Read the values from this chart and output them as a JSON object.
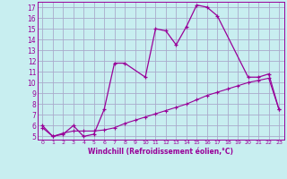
{
  "xlabel": "Windchill (Refroidissement éolien,°C)",
  "bg_color": "#c8eef0",
  "grid_color": "#aaaacc",
  "line_color": "#990099",
  "xlim": [
    -0.5,
    23.5
  ],
  "ylim": [
    4.7,
    17.5
  ],
  "yticks": [
    5,
    6,
    7,
    8,
    9,
    10,
    11,
    12,
    13,
    14,
    15,
    16,
    17
  ],
  "xticks": [
    0,
    1,
    2,
    3,
    4,
    5,
    6,
    7,
    8,
    9,
    10,
    11,
    12,
    13,
    14,
    15,
    16,
    17,
    18,
    19,
    20,
    21,
    22,
    23
  ],
  "line1_x": [
    0,
    1,
    2,
    3,
    4,
    5,
    6,
    7,
    8,
    10,
    11,
    12,
    13,
    14,
    15,
    16,
    17,
    20,
    21,
    22,
    23
  ],
  "line1_y": [
    6.0,
    5.0,
    5.2,
    6.0,
    5.0,
    5.2,
    7.5,
    11.8,
    11.8,
    10.5,
    15.0,
    14.8,
    13.5,
    15.2,
    17.2,
    17.0,
    16.2,
    10.5,
    10.5,
    10.8,
    7.5
  ],
  "line2_x": [
    0,
    1,
    2,
    3,
    4,
    5,
    6,
    7,
    8,
    9,
    10,
    11,
    12,
    13,
    14,
    15,
    16,
    17,
    18,
    19,
    20,
    21,
    22,
    23
  ],
  "line2_y": [
    5.8,
    5.0,
    5.3,
    5.5,
    5.5,
    5.5,
    5.6,
    5.8,
    6.2,
    6.5,
    6.8,
    7.1,
    7.4,
    7.7,
    8.0,
    8.4,
    8.8,
    9.1,
    9.4,
    9.7,
    10.0,
    10.2,
    10.4,
    7.5
  ]
}
